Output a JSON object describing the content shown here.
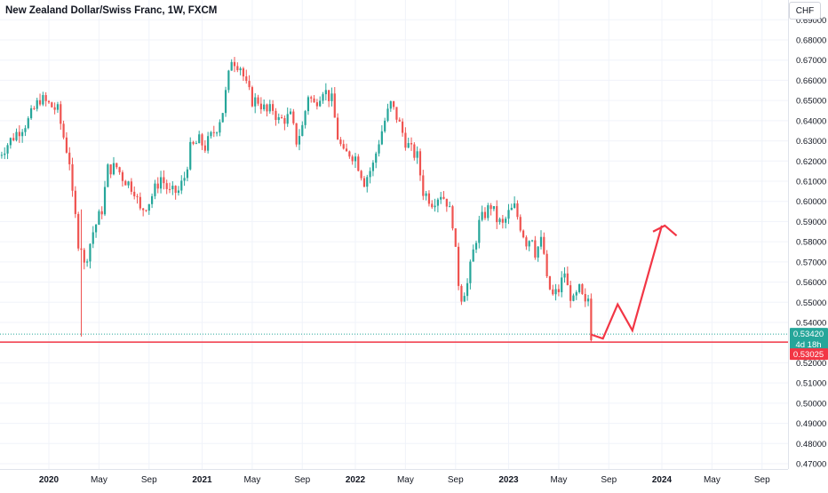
{
  "header": {
    "title": "New Zealand Dollar/Swiss Franc, 1W, FXCM"
  },
  "toolbar": {
    "currency": "CHF"
  },
  "price_tags": {
    "last_price": "0.53420",
    "countdown": "4d 18h",
    "support_level": "0.53025"
  },
  "colors": {
    "up": "#26a69a",
    "down": "#ef5350",
    "support_line": "#f23645",
    "projection": "#f23645",
    "last_price_tag": "#26a69a",
    "grid": "#f0f3fa",
    "axis_text": "#131722"
  },
  "chart_data": {
    "type": "candlestick",
    "title": "New Zealand Dollar/Swiss Franc, 1W, FXCM",
    "ylim": [
      0.47,
      0.69
    ],
    "y_ticks": [
      "0.47000",
      "0.48000",
      "0.49000",
      "0.50000",
      "0.51000",
      "0.52000",
      "0.53000",
      "0.54000",
      "0.55000",
      "0.56000",
      "0.57000",
      "0.58000",
      "0.59000",
      "0.60000",
      "0.61000",
      "0.62000",
      "0.63000",
      "0.64000",
      "0.65000",
      "0.66000",
      "0.67000",
      "0.68000",
      "0.69000"
    ],
    "x_ticks": [
      {
        "label": "2020",
        "week": 10
      },
      {
        "label": "May",
        "week": 27
      },
      {
        "label": "Sep",
        "week": 44
      },
      {
        "label": "2021",
        "week": 62
      },
      {
        "label": "May",
        "week": 79
      },
      {
        "label": "Sep",
        "week": 96
      },
      {
        "label": "2022",
        "week": 114
      },
      {
        "label": "May",
        "week": 131
      },
      {
        "label": "Sep",
        "week": 148
      },
      {
        "label": "2023",
        "week": 166
      },
      {
        "label": "May",
        "week": 183
      },
      {
        "label": "Sep",
        "week": 200
      },
      {
        "label": "2024",
        "week": 218
      },
      {
        "label": "May",
        "week": 235
      },
      {
        "label": "Sep",
        "week": 252
      }
    ],
    "first_week": -7,
    "last_week": 258,
    "last_candle_week": 194,
    "key_points": [
      [
        -7,
        0.623
      ],
      [
        -1,
        0.634
      ],
      [
        3,
        0.64
      ],
      [
        7,
        0.651
      ],
      [
        10,
        0.648
      ],
      [
        13,
        0.645
      ],
      [
        15,
        0.632
      ],
      [
        17,
        0.62
      ],
      [
        18,
        0.602
      ],
      [
        19,
        0.592
      ],
      [
        20,
        0.58
      ],
      [
        21,
        0.578
      ],
      [
        22,
        0.568
      ],
      [
        25,
        0.585
      ],
      [
        28,
        0.596
      ],
      [
        30,
        0.616
      ],
      [
        33,
        0.617
      ],
      [
        35,
        0.612
      ],
      [
        39,
        0.606
      ],
      [
        41,
        0.595
      ],
      [
        44,
        0.6
      ],
      [
        48,
        0.612
      ],
      [
        51,
        0.604
      ],
      [
        54,
        0.605
      ],
      [
        56,
        0.612
      ],
      [
        58,
        0.626
      ],
      [
        61,
        0.63
      ],
      [
        63,
        0.627
      ],
      [
        65,
        0.632
      ],
      [
        67,
        0.637
      ],
      [
        69,
        0.645
      ],
      [
        71,
        0.662
      ],
      [
        72,
        0.671
      ],
      [
        75,
        0.667
      ],
      [
        77,
        0.657
      ],
      [
        79,
        0.65
      ],
      [
        81,
        0.65
      ],
      [
        84,
        0.644
      ],
      [
        86,
        0.646
      ],
      [
        88,
        0.64
      ],
      [
        90,
        0.641
      ],
      [
        92,
        0.642
      ],
      [
        94,
        0.63
      ],
      [
        96,
        0.637
      ],
      [
        98,
        0.653
      ],
      [
        100,
        0.648
      ],
      [
        103,
        0.656
      ],
      [
        106,
        0.65
      ],
      [
        108,
        0.632
      ],
      [
        110,
        0.623
      ],
      [
        112,
        0.624
      ],
      [
        114,
        0.622
      ],
      [
        116,
        0.614
      ],
      [
        117,
        0.61
      ],
      [
        120,
        0.618
      ],
      [
        122,
        0.63
      ],
      [
        124,
        0.64
      ],
      [
        126,
        0.648
      ],
      [
        128,
        0.642
      ],
      [
        131,
        0.63
      ],
      [
        133,
        0.625
      ],
      [
        135,
        0.622
      ],
      [
        137,
        0.605
      ],
      [
        140,
        0.6
      ],
      [
        143,
        0.604
      ],
      [
        145,
        0.6
      ],
      [
        147,
        0.59
      ],
      [
        148,
        0.574
      ],
      [
        149,
        0.56
      ],
      [
        150,
        0.553
      ],
      [
        152,
        0.559
      ],
      [
        154,
        0.575
      ],
      [
        156,
        0.589
      ],
      [
        158,
        0.594
      ],
      [
        160,
        0.598
      ],
      [
        162,
        0.591
      ],
      [
        164,
        0.588
      ],
      [
        166,
        0.594
      ],
      [
        168,
        0.597
      ],
      [
        170,
        0.588
      ],
      [
        172,
        0.58
      ],
      [
        174,
        0.583
      ],
      [
        175,
        0.575
      ],
      [
        177,
        0.58
      ],
      [
        178,
        0.574
      ],
      [
        179,
        0.56
      ],
      [
        181,
        0.553
      ],
      [
        183,
        0.556
      ],
      [
        185,
        0.565
      ],
      [
        186,
        0.557
      ],
      [
        188,
        0.55
      ],
      [
        190,
        0.556
      ],
      [
        192,
        0.548
      ],
      [
        193,
        0.552
      ],
      [
        194,
        0.534
      ]
    ],
    "spike": {
      "week": 21,
      "low": 0.533,
      "high": 0.596
    },
    "projection_path": [
      [
        194,
        0.534
      ],
      [
        198,
        0.532
      ],
      [
        203,
        0.549
      ],
      [
        208,
        0.536
      ],
      [
        218,
        0.588
      ]
    ],
    "projection_arrow": [
      [
        215,
        0.585
      ],
      [
        219,
        0.588
      ],
      [
        223,
        0.583
      ]
    ],
    "support_line": 0.53025,
    "last_price": 0.5342
  }
}
